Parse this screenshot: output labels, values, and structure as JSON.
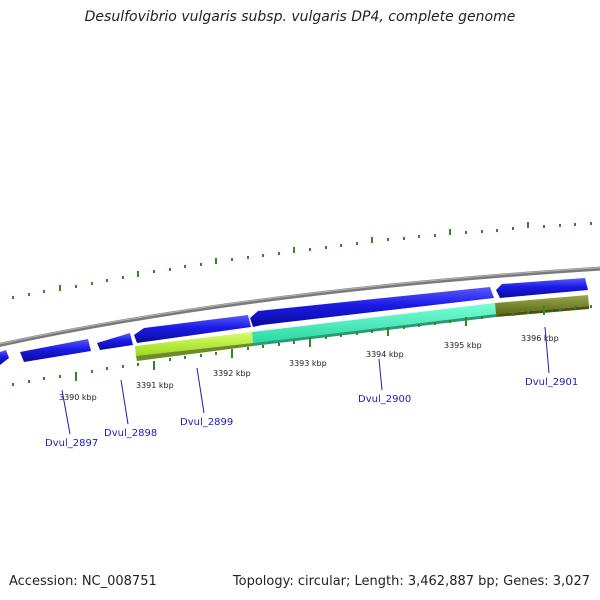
{
  "title": "Desulfovibrio vulgaris subsp. vulgaris DP4, complete genome",
  "footer": {
    "accession": "Accession: NC_008751",
    "summary": "Topology: circular; Length: 3,462,887 bp; Genes: 3,027"
  },
  "scale_labels": [
    "3390 kbp",
    "3391 kbp",
    "3392 kbp",
    "3393 kbp",
    "3394 kbp",
    "3395 kbp",
    "3396 kbp"
  ],
  "gene_labels": [
    "Dvul_2897",
    "Dvul_2898",
    "Dvul_2899",
    "Dvul_2900",
    "Dvul_2901"
  ],
  "colors": {
    "backbone": "#8a8a8a",
    "gene_blue": "#1a1ae6",
    "gene_label": "#1c1cbb",
    "tick_green": "#2f8a1f",
    "feature_lime": "#b7f23a",
    "feature_cyan": "#45f2c2",
    "feature_olive": "#7a8a2a"
  }
}
